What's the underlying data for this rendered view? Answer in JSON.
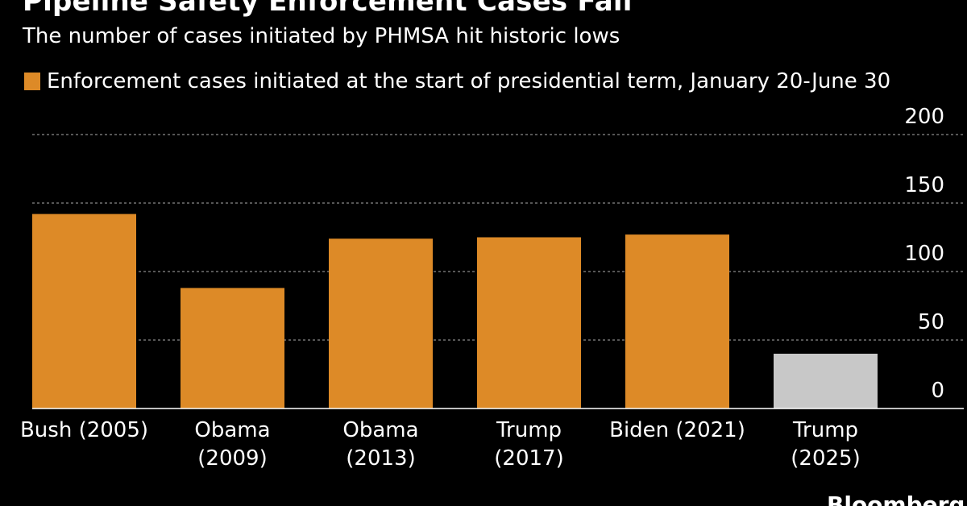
{
  "chart_data": {
    "type": "bar",
    "title": "Pipeline Safety Enforcement Cases Fall",
    "subtitle": "The number of cases initiated by PHMSA hit historic lows",
    "legend": [
      {
        "label": "Enforcement cases initiated at the start of presidential term, January 20-June 30",
        "color": "#dd8a27"
      }
    ],
    "categories": [
      [
        "Bush (2005)"
      ],
      [
        "Obama",
        "(2009)"
      ],
      [
        "Obama",
        "(2013)"
      ],
      [
        "Trump",
        "(2017)"
      ],
      [
        "Biden (2021)"
      ],
      [
        "Trump",
        "(2025)"
      ]
    ],
    "values": [
      142,
      88,
      124,
      125,
      127,
      40
    ],
    "bar_colors": [
      "#dd8a27",
      "#dd8a27",
      "#dd8a27",
      "#dd8a27",
      "#dd8a27",
      "#c8c8c8"
    ],
    "yticks": [
      0,
      50,
      100,
      150,
      200
    ],
    "ylim": [
      0,
      200
    ],
    "xlabel": "",
    "ylabel": "",
    "grid": true,
    "axis_position": "right"
  },
  "footer": {
    "source_logo": "Bloomberg"
  }
}
